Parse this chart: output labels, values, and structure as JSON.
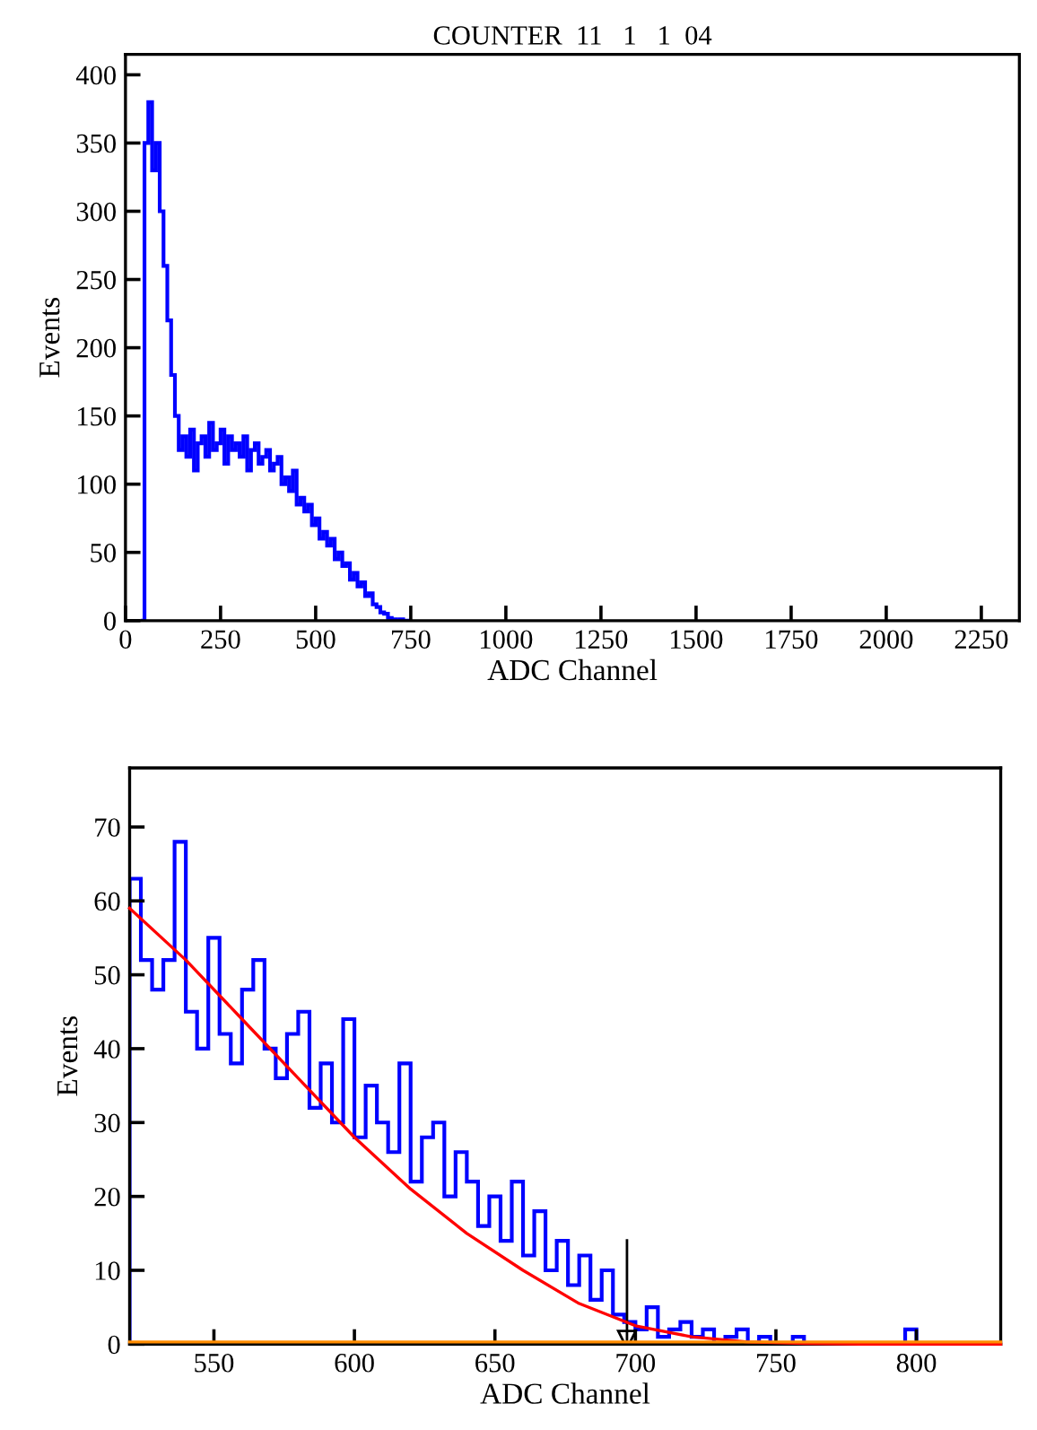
{
  "chart_data": [
    {
      "type": "histogram",
      "title": "COUNTER  11   1   1  04",
      "xlabel": "ADC Channel",
      "ylabel": "Events",
      "color": "#0000ff",
      "bins": [
        40,
        50,
        60,
        70,
        80,
        90,
        100,
        110,
        120,
        130,
        140,
        150,
        160,
        170,
        180,
        190,
        200,
        210,
        220,
        230,
        240,
        250,
        260,
        270,
        280,
        290,
        300,
        310,
        320,
        330,
        340,
        350,
        360,
        370,
        380,
        390,
        400,
        410,
        420,
        430,
        440,
        450,
        460,
        470,
        480,
        490,
        500,
        510,
        520,
        530,
        540,
        550,
        560,
        570,
        580,
        590,
        600,
        610,
        620,
        630,
        640,
        650,
        660,
        670,
        680,
        690,
        700,
        710,
        720,
        730,
        740,
        750
      ],
      "values": [
        0,
        350,
        380,
        330,
        350,
        300,
        260,
        220,
        180,
        150,
        125,
        135,
        120,
        140,
        110,
        130,
        135,
        120,
        145,
        125,
        130,
        140,
        115,
        135,
        125,
        130,
        120,
        135,
        110,
        125,
        130,
        115,
        120,
        125,
        110,
        115,
        120,
        100,
        105,
        95,
        110,
        85,
        90,
        80,
        85,
        70,
        75,
        60,
        65,
        55,
        60,
        45,
        50,
        40,
        42,
        30,
        35,
        25,
        28,
        18,
        20,
        12,
        10,
        6,
        5,
        2,
        1,
        0,
        1,
        0,
        0
      ],
      "xlim": [
        0,
        2350
      ],
      "xticks": [
        0,
        250,
        500,
        750,
        1000,
        1250,
        1500,
        1750,
        2000,
        2250
      ],
      "ylim": [
        0,
        415
      ],
      "yticks": [
        0,
        50,
        100,
        150,
        200,
        250,
        300,
        350,
        400
      ],
      "grid": false
    },
    {
      "type": "histogram",
      "xlabel": "ADC Channel",
      "ylabel": "Events",
      "color": "#0000ff",
      "bins": [
        520,
        524,
        528,
        532,
        536,
        540,
        544,
        548,
        552,
        556,
        560,
        564,
        568,
        572,
        576,
        580,
        584,
        588,
        592,
        596,
        600,
        604,
        608,
        612,
        616,
        620,
        624,
        628,
        632,
        636,
        640,
        644,
        648,
        652,
        656,
        660,
        664,
        668,
        672,
        676,
        680,
        684,
        688,
        692,
        696,
        700,
        704,
        708,
        712,
        716,
        720,
        724,
        728,
        732,
        736,
        740,
        744,
        748,
        752,
        756,
        760,
        764,
        768,
        772,
        776,
        780,
        784,
        788,
        792,
        796,
        800
      ],
      "values": [
        63,
        52,
        48,
        52,
        68,
        45,
        40,
        55,
        42,
        38,
        48,
        52,
        40,
        36,
        42,
        45,
        32,
        38,
        30,
        44,
        28,
        35,
        30,
        26,
        38,
        22,
        28,
        30,
        20,
        26,
        22,
        16,
        20,
        14,
        22,
        12,
        18,
        10,
        14,
        8,
        12,
        6,
        10,
        4,
        3,
        2,
        5,
        1,
        2,
        3,
        1,
        2,
        0,
        1,
        2,
        0,
        1,
        0,
        0,
        1,
        0,
        0,
        0,
        0,
        0,
        0,
        0,
        0,
        0,
        2
      ],
      "series": [
        {
          "type": "line",
          "color": "#ff0000",
          "x": [
            520,
            540,
            560,
            580,
            600,
            620,
            640,
            660,
            680,
            700,
            720,
            740,
            760,
            780,
            830
          ],
          "values": [
            59,
            52,
            44,
            36,
            28,
            21,
            15,
            10,
            5.5,
            2.5,
            1,
            0.3,
            0.1,
            0,
            0
          ]
        },
        {
          "type": "line",
          "color": "#ff8c00",
          "x": [
            520,
            830
          ],
          "values": [
            0.3,
            0.3
          ]
        }
      ],
      "ref_lines": [
        {
          "axis": "x",
          "value": 697,
          "color": "#000000"
        }
      ],
      "xlim": [
        520,
        830
      ],
      "xticks": [
        550,
        600,
        650,
        700,
        750,
        800
      ],
      "ylim": [
        0,
        78
      ],
      "yticks": [
        0,
        10,
        20,
        30,
        40,
        50,
        60,
        70
      ],
      "grid": false
    }
  ]
}
